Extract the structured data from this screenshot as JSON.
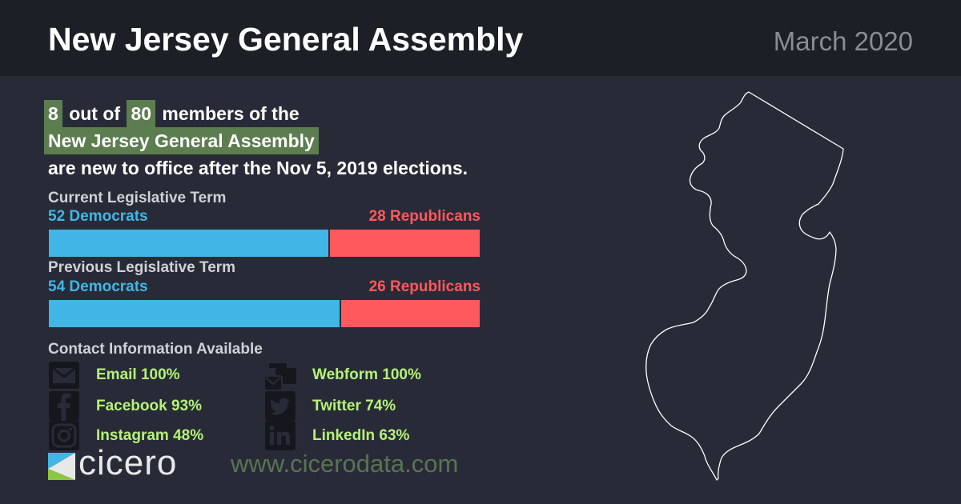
{
  "header": {
    "title": "New Jersey General Assembly",
    "date": "March 2020"
  },
  "headline": {
    "new_count": "8",
    "out_of": "out of",
    "total": "80",
    "members_of": "members of the",
    "body_name": "New Jersey General Assembly",
    "tail": "are new to office after the Nov 5, 2019 elections."
  },
  "terms": {
    "current": {
      "label": "Current Legislative Term",
      "dem_label": "52 Democrats",
      "rep_label": "28 Republicans",
      "dem": 52,
      "rep": 28
    },
    "previous": {
      "label": "Previous Legislative Term",
      "dem_label": "54 Democrats",
      "rep_label": "26 Republicans",
      "dem": 54,
      "rep": 26
    }
  },
  "contact": {
    "heading": "Contact Information Available",
    "items": [
      {
        "icon": "email-icon",
        "label": "Email 100%"
      },
      {
        "icon": "webform-icon",
        "label": "Webform 100%"
      },
      {
        "icon": "facebook-icon",
        "label": "Facebook 93%"
      },
      {
        "icon": "twitter-icon",
        "label": "Twitter 74%"
      },
      {
        "icon": "instagram-icon",
        "label": "Instagram 48%"
      },
      {
        "icon": "linkedin-icon",
        "label": "LinkedIn 63%"
      }
    ]
  },
  "footer": {
    "logo": "cicero",
    "url": "www.cicerodata.com"
  },
  "colors": {
    "democrat": "#41b6e6",
    "republican": "#ff585d",
    "highlight": "#5c7d4f",
    "contact_text": "#b5f277"
  }
}
